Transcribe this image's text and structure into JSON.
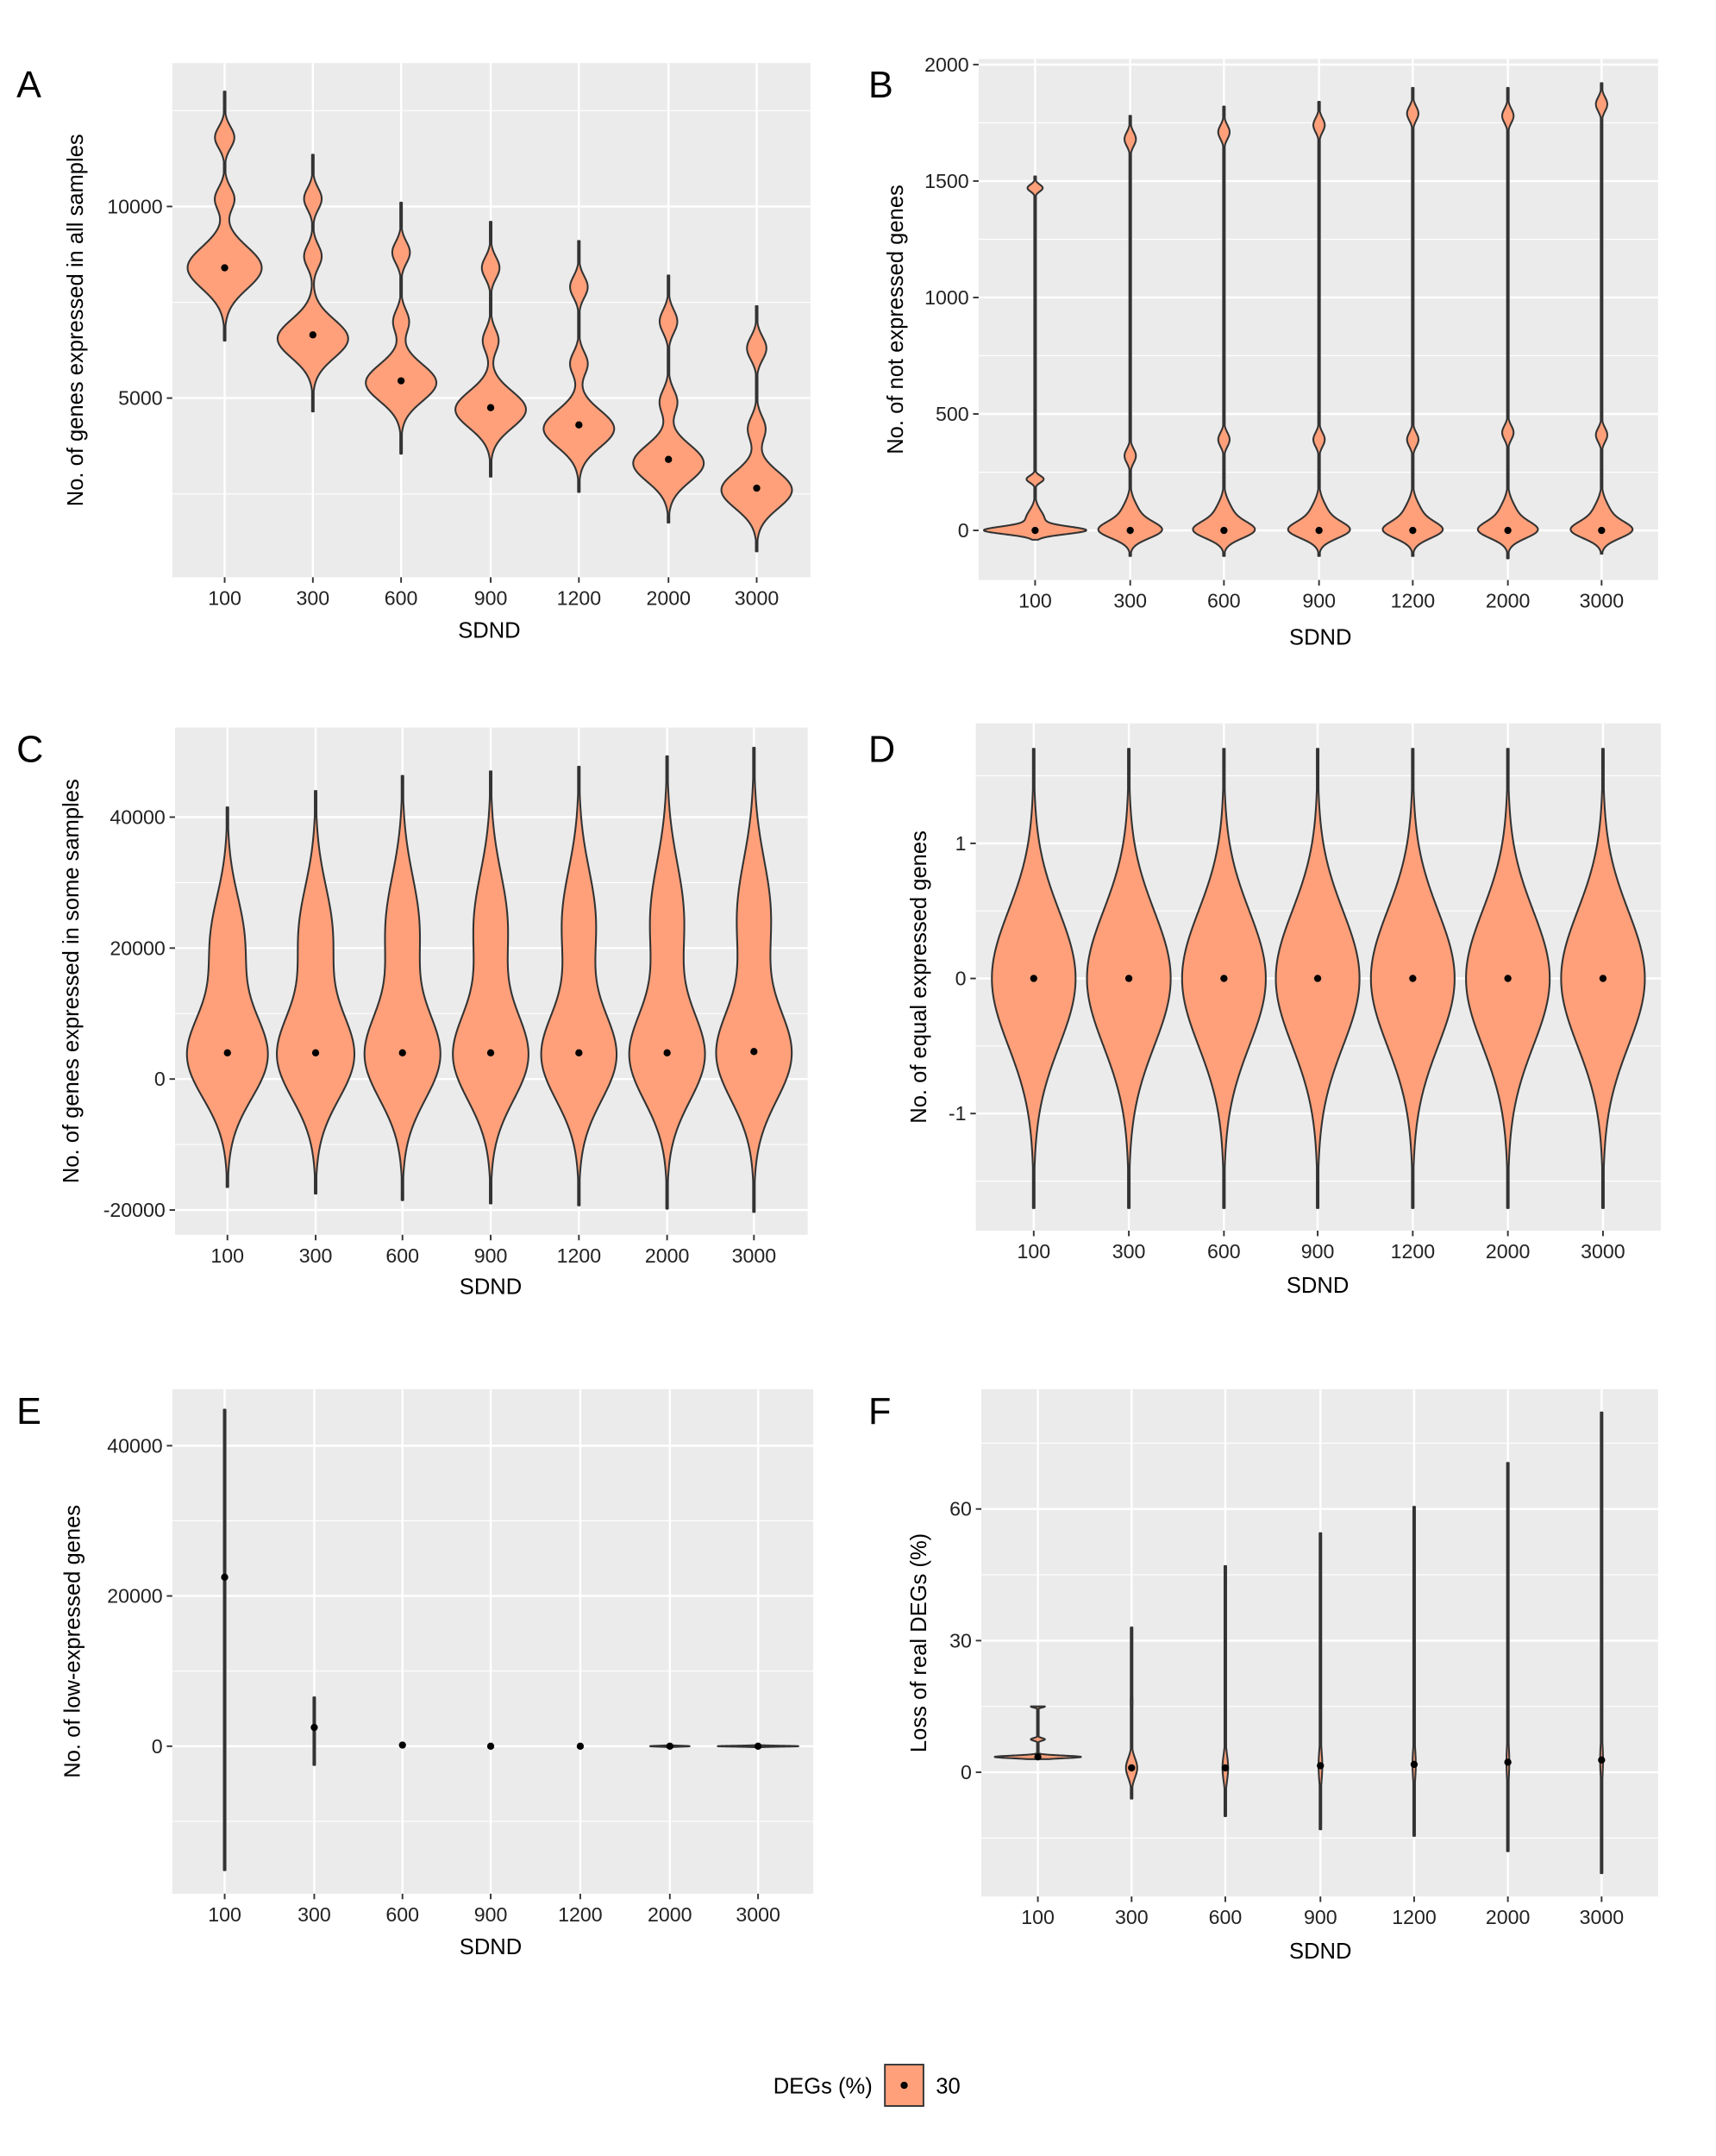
{
  "colors": {
    "fill": "#FFA07A",
    "outline": "#333333",
    "panel_bg": "#EBEBEB",
    "grid": "#FFFFFF",
    "median": "#000000"
  },
  "legend": {
    "title": "DEGs (%)",
    "label": "30",
    "placement": "bottom"
  },
  "chart_data": [
    {
      "panel": "A",
      "type": "violin",
      "grid": true,
      "xlabel": "SDND",
      "ylabel": "No. of genes expressed in all samples",
      "categories": [
        "100",
        "300",
        "600",
        "900",
        "1200",
        "2000",
        "3000"
      ],
      "ylim": [
        324,
        13741
      ],
      "yticks": [
        5000,
        10000
      ],
      "yminor": [
        2500,
        7500,
        12500
      ],
      "violins": [
        {
          "median": 8400,
          "range": [
            6500,
            13000
          ],
          "modes": [
            [
              8400,
              550,
              0.84
            ],
            [
              10200,
              300,
              0.22
            ],
            [
              11800,
              280,
              0.22
            ]
          ]
        },
        {
          "median": 6650,
          "range": [
            4650,
            11350
          ],
          "modes": [
            [
              6550,
              500,
              0.8
            ],
            [
              8700,
              300,
              0.2
            ],
            [
              10200,
              280,
              0.2
            ]
          ]
        },
        {
          "median": 5450,
          "range": [
            3550,
            10100
          ],
          "modes": [
            [
              5400,
              480,
              0.8
            ],
            [
              7000,
              300,
              0.18
            ],
            [
              8800,
              280,
              0.2
            ]
          ]
        },
        {
          "median": 4750,
          "range": [
            2950,
            9600
          ],
          "modes": [
            [
              4700,
              480,
              0.8
            ],
            [
              6500,
              300,
              0.18
            ],
            [
              8400,
              280,
              0.2
            ]
          ]
        },
        {
          "median": 4300,
          "range": [
            2550,
            9100
          ],
          "modes": [
            [
              4200,
              480,
              0.8
            ],
            [
              5900,
              300,
              0.2
            ],
            [
              7900,
              280,
              0.2
            ]
          ]
        },
        {
          "median": 3400,
          "range": [
            1750,
            8200
          ],
          "modes": [
            [
              3300,
              480,
              0.8
            ],
            [
              4900,
              320,
              0.2
            ],
            [
              7000,
              300,
              0.2
            ]
          ]
        },
        {
          "median": 2650,
          "range": [
            1000,
            7400
          ],
          "modes": [
            [
              2600,
              480,
              0.8
            ],
            [
              4200,
              320,
              0.2
            ],
            [
              6300,
              300,
              0.22
            ]
          ]
        }
      ]
    },
    {
      "panel": "B",
      "type": "violin",
      "grid": true,
      "xlabel": "SDND",
      "ylabel": "No. of not expressed genes",
      "categories": [
        "100",
        "300",
        "600",
        "900",
        "1200",
        "2000",
        "3000"
      ],
      "ylim": [
        -213,
        2024
      ],
      "yticks": [
        0,
        500,
        1000,
        1500,
        2000
      ],
      "yminor": [
        250,
        750,
        1250,
        1750
      ],
      "violins": [
        {
          "median": 0,
          "range": [
            -40,
            1520
          ],
          "modes": [
            [
              0,
              16,
              0.97
            ],
            [
              45,
              40,
              0.2
            ],
            [
              220,
              15,
              0.18
            ],
            [
              1470,
              15,
              0.16
            ]
          ]
        },
        {
          "median": 0,
          "range": [
            -110,
            1780
          ],
          "modes": [
            [
              0,
              35,
              0.6
            ],
            [
              70,
              50,
              0.18
            ],
            [
              320,
              30,
              0.12
            ],
            [
              1680,
              30,
              0.12
            ]
          ]
        },
        {
          "median": 0,
          "range": [
            -110,
            1820
          ],
          "modes": [
            [
              0,
              35,
              0.58
            ],
            [
              70,
              50,
              0.18
            ],
            [
              390,
              30,
              0.12
            ],
            [
              1710,
              30,
              0.12
            ]
          ]
        },
        {
          "median": 0,
          "range": [
            -110,
            1840
          ],
          "modes": [
            [
              0,
              35,
              0.58
            ],
            [
              70,
              50,
              0.18
            ],
            [
              390,
              30,
              0.12
            ],
            [
              1740,
              30,
              0.12
            ]
          ]
        },
        {
          "median": 0,
          "range": [
            -110,
            1900
          ],
          "modes": [
            [
              0,
              35,
              0.56
            ],
            [
              70,
              50,
              0.18
            ],
            [
              390,
              30,
              0.12
            ],
            [
              1790,
              30,
              0.12
            ]
          ]
        },
        {
          "median": 0,
          "range": [
            -120,
            1900
          ],
          "modes": [
            [
              0,
              35,
              0.56
            ],
            [
              70,
              50,
              0.18
            ],
            [
              420,
              30,
              0.12
            ],
            [
              1780,
              30,
              0.12
            ]
          ]
        },
        {
          "median": 0,
          "range": [
            -100,
            1920
          ],
          "modes": [
            [
              0,
              35,
              0.58
            ],
            [
              70,
              50,
              0.18
            ],
            [
              410,
              30,
              0.12
            ],
            [
              1830,
              30,
              0.12
            ]
          ]
        }
      ]
    },
    {
      "panel": "C",
      "type": "violin",
      "grid": true,
      "xlabel": "SDND",
      "ylabel": "No. of genes expressed in some samples",
      "categories": [
        "100",
        "300",
        "600",
        "900",
        "1200",
        "2000",
        "3000"
      ],
      "ylim": [
        -23789,
        53684
      ],
      "yticks": [
        -20000,
        0,
        20000,
        40000
      ],
      "yminor": [
        -10000,
        10000,
        30000
      ],
      "violins": [
        {
          "median": 4000,
          "range": [
            -16500,
            41500
          ],
          "modes": [
            [
              3500,
              6500,
              0.9
            ],
            [
              21000,
              7000,
              0.38
            ]
          ]
        },
        {
          "median": 4000,
          "range": [
            -17500,
            44000
          ],
          "modes": [
            [
              3500,
              6600,
              0.86
            ],
            [
              22000,
              7500,
              0.38
            ]
          ]
        },
        {
          "median": 4000,
          "range": [
            -18500,
            46300
          ],
          "modes": [
            [
              3500,
              6700,
              0.84
            ],
            [
              23000,
              8000,
              0.38
            ]
          ]
        },
        {
          "median": 4000,
          "range": [
            -19000,
            47000
          ],
          "modes": [
            [
              3500,
              6800,
              0.84
            ],
            [
              23500,
              8000,
              0.38
            ]
          ]
        },
        {
          "median": 4000,
          "range": [
            -19300,
            47700
          ],
          "modes": [
            [
              3500,
              6800,
              0.84
            ],
            [
              24000,
              8000,
              0.38
            ]
          ]
        },
        {
          "median": 4000,
          "range": [
            -19800,
            49300
          ],
          "modes": [
            [
              3500,
              6900,
              0.84
            ],
            [
              24500,
              8500,
              0.38
            ]
          ]
        },
        {
          "median": 4200,
          "range": [
            -20300,
            50600
          ],
          "modes": [
            [
              3700,
              7000,
              0.84
            ],
            [
              25000,
              8500,
              0.38
            ]
          ]
        }
      ]
    },
    {
      "panel": "D",
      "type": "violin",
      "grid": true,
      "xlabel": "SDND",
      "ylabel": "No. of equal expressed genes",
      "categories": [
        "100",
        "300",
        "600",
        "900",
        "1200",
        "2000",
        "3000"
      ],
      "ylim": [
        -1.867,
        1.888
      ],
      "yticks": [
        -1,
        0,
        1
      ],
      "yminor": [
        -1.5,
        -0.5,
        0.5,
        1.5
      ],
      "violins": [
        {
          "median": 0,
          "range": [
            -1.7,
            1.7
          ],
          "modes": [
            [
              0,
              0.5,
              0.88
            ]
          ]
        },
        {
          "median": 0,
          "range": [
            -1.7,
            1.7
          ],
          "modes": [
            [
              0,
              0.5,
              0.88
            ]
          ]
        },
        {
          "median": 0,
          "range": [
            -1.7,
            1.7
          ],
          "modes": [
            [
              0,
              0.5,
              0.88
            ]
          ]
        },
        {
          "median": 0,
          "range": [
            -1.7,
            1.7
          ],
          "modes": [
            [
              0,
              0.5,
              0.88
            ]
          ]
        },
        {
          "median": 0,
          "range": [
            -1.7,
            1.7
          ],
          "modes": [
            [
              0,
              0.5,
              0.88
            ]
          ]
        },
        {
          "median": 0,
          "range": [
            -1.7,
            1.7
          ],
          "modes": [
            [
              0,
              0.5,
              0.88
            ]
          ]
        },
        {
          "median": 0,
          "range": [
            -1.7,
            1.7
          ],
          "modes": [
            [
              0,
              0.5,
              0.88
            ]
          ]
        }
      ]
    },
    {
      "panel": "E",
      "type": "violin",
      "grid": true,
      "xlabel": "SDND",
      "ylabel": "No. of low-expressed genes",
      "categories": [
        "100",
        "300",
        "600",
        "900",
        "1200",
        "2000",
        "3000"
      ],
      "ylim": [
        -19633,
        47523
      ],
      "yticks": [
        0,
        20000,
        40000
      ],
      "yminor": [
        -10000,
        10000,
        30000
      ],
      "violins": [
        {
          "median": 22500,
          "range": [
            -16500,
            44800
          ],
          "modes": []
        },
        {
          "median": 2500,
          "range": [
            -2500,
            6500
          ],
          "modes": []
        },
        {
          "median": 150,
          "range": [
            100,
            200
          ],
          "modes": []
        },
        {
          "median": 0,
          "range": [
            -20,
            20
          ],
          "modes": []
        },
        {
          "median": 0,
          "range": [
            -20,
            20
          ],
          "modes": []
        },
        {
          "median": 0,
          "range": [
            -250,
            250
          ],
          "modes": [
            [
              0,
              60,
              0.44
            ]
          ]
        },
        {
          "median": 0,
          "range": [
            -250,
            250
          ],
          "modes": [
            [
              0,
              60,
              0.9
            ]
          ]
        }
      ]
    },
    {
      "panel": "F",
      "type": "violin",
      "grid": true,
      "xlabel": "SDND",
      "ylabel": "Loss of real DEGs (%)",
      "categories": [
        "100",
        "300",
        "600",
        "900",
        "1200",
        "2000",
        "3000"
      ],
      "ylim": [
        -28.3,
        87.3
      ],
      "yticks": [
        0,
        30,
        60
      ],
      "yminor": [
        -15,
        15,
        45,
        75
      ],
      "violins": [
        {
          "median": 3.5,
          "range": [
            3,
            15
          ],
          "modes": [
            [
              3.5,
              0.3,
              0.92
            ],
            [
              7.5,
              0.3,
              0.15
            ],
            [
              15,
              0.25,
              0.15
            ]
          ]
        },
        {
          "median": 1,
          "range": [
            -6,
            33
          ],
          "modes": [
            [
              1,
              2.2,
              0.12
            ],
            [
              16,
              3,
              0.02
            ]
          ]
        },
        {
          "median": 1,
          "range": [
            -10,
            47
          ],
          "modes": [
            [
              1,
              3,
              0.06
            ]
          ]
        },
        {
          "median": 1.5,
          "range": [
            -13,
            54.5
          ],
          "modes": [
            [
              1.5,
              3.5,
              0.04
            ]
          ]
        },
        {
          "median": 1.8,
          "range": [
            -14.5,
            60.5
          ],
          "modes": [
            [
              1.8,
              3.5,
              0.035
            ]
          ]
        },
        {
          "median": 2.3,
          "range": [
            -18,
            70.5
          ],
          "modes": [
            [
              2.3,
              4,
              0.03
            ]
          ]
        },
        {
          "median": 2.8,
          "range": [
            -23,
            82
          ],
          "modes": [
            [
              2.8,
              4,
              0.03
            ]
          ]
        }
      ]
    }
  ]
}
